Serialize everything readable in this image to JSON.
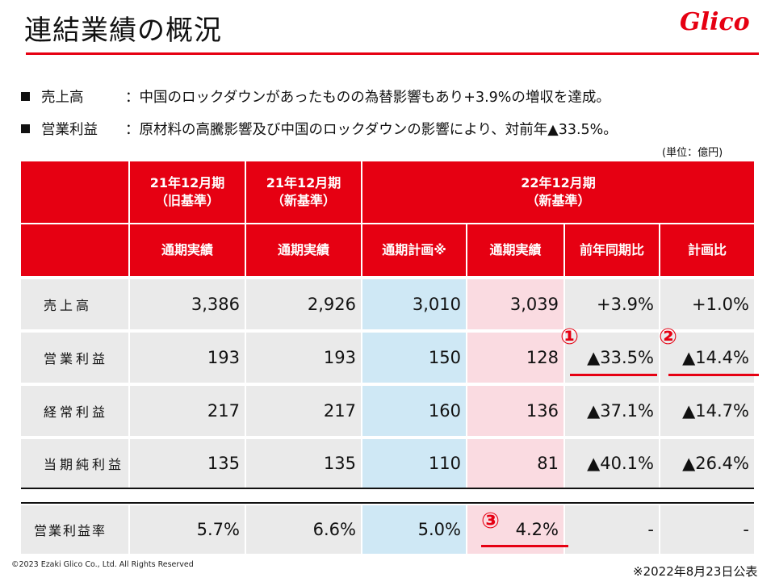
{
  "page": {
    "title": "連結業績の概況",
    "logo_text": "Glico",
    "unit": "(単位：億円)",
    "copyright": "©2023 Ezaki Glico Co., Ltd. All Rights Reserved",
    "date": "※2022年8月23日公表"
  },
  "bullets": [
    {
      "label": "売上高",
      "text": "：中国のロックダウンがあったものの為替影響もあり+3.9%の増収を達成。"
    },
    {
      "label": "営業利益",
      "text": "：原材料の高騰影響及び中国のロックダウンの影響により、対前年▲33.5%。"
    }
  ],
  "table": {
    "groups": [
      {
        "line1": "21年12月期",
        "line2": "（旧基準）"
      },
      {
        "line1": "21年12月期",
        "line2": "（新基準）"
      },
      {
        "line1": "22年12月期",
        "line2": "（新基準）"
      }
    ],
    "columns": [
      "通期実績",
      "通期実績",
      "通期計画※",
      "通期実績",
      "前年同期比",
      "計画比"
    ],
    "rows": [
      {
        "label": "売上高",
        "values": [
          "3,386",
          "2,926",
          "3,010",
          "3,039",
          "+3.9%",
          "+1.0%"
        ]
      },
      {
        "label": "営業利益",
        "values": [
          "193",
          "193",
          "150",
          "128",
          "▲33.5%",
          "▲14.4%"
        ]
      },
      {
        "label": "経常利益",
        "values": [
          "217",
          "217",
          "160",
          "136",
          "▲37.1%",
          "▲14.7%"
        ]
      },
      {
        "label": "当期純利益",
        "values": [
          "135",
          "135",
          "110",
          "81",
          "▲40.1%",
          "▲26.4%"
        ]
      }
    ],
    "margin_row": {
      "label": "営業利益率",
      "values": [
        "5.7%",
        "6.6%",
        "5.0%",
        "4.2%",
        "-",
        "-"
      ]
    }
  },
  "annotations": {
    "one": "①",
    "two": "②",
    "three": "③"
  },
  "colors": {
    "accent": "#e60012",
    "plan_column": "#cfe8f5",
    "actual_column": "#fadbe1",
    "row_bg": "#eaeaea"
  }
}
